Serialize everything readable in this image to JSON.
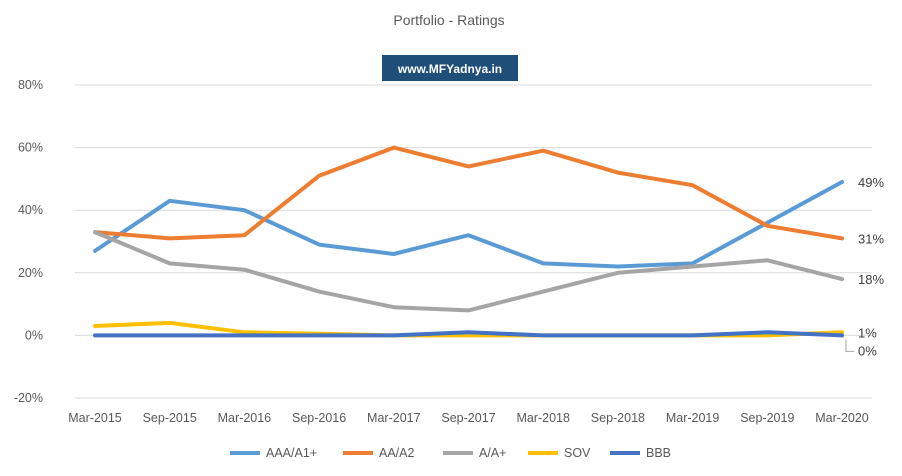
{
  "chart_data": {
    "type": "line",
    "title": "Portfolio - Ratings",
    "watermark": "www.MFYadnya.in",
    "categories": [
      "Mar-2015",
      "Sep-2015",
      "Mar-2016",
      "Sep-2016",
      "Mar-2017",
      "Sep-2017",
      "Mar-2018",
      "Sep-2018",
      "Mar-2019",
      "Sep-2019",
      "Mar-2020"
    ],
    "y_ticks": [
      "80%",
      "60%",
      "40%",
      "20%",
      "0%",
      "-20%"
    ],
    "ylim": [
      -20,
      80
    ],
    "grid": true,
    "legend_position": "bottom",
    "series": [
      {
        "name": "AAA/A1+",
        "color": "#5B9BD5",
        "values": [
          27,
          43,
          40,
          29,
          26,
          32,
          23,
          22,
          23,
          36,
          49
        ],
        "end_label": "49%"
      },
      {
        "name": "AA/A2",
        "color": "#ED7D31",
        "values": [
          33,
          31,
          32,
          51,
          60,
          54,
          59,
          52,
          48,
          35,
          31
        ],
        "end_label": "31%"
      },
      {
        "name": "A/A+",
        "color": "#A5A5A5",
        "values": [
          33,
          23,
          21,
          14,
          9,
          8,
          14,
          20,
          22,
          24,
          18
        ],
        "end_label": "18%"
      },
      {
        "name": "SOV",
        "color": "#FFC000",
        "values": [
          3,
          4,
          1,
          0.5,
          0,
          0,
          0,
          0,
          0,
          0,
          1
        ],
        "end_label": "1%"
      },
      {
        "name": "BBB",
        "color": "#4472C4",
        "values": [
          0,
          0,
          0,
          0,
          0,
          1,
          0,
          0,
          0,
          1,
          0
        ],
        "end_label": "0%"
      }
    ]
  }
}
